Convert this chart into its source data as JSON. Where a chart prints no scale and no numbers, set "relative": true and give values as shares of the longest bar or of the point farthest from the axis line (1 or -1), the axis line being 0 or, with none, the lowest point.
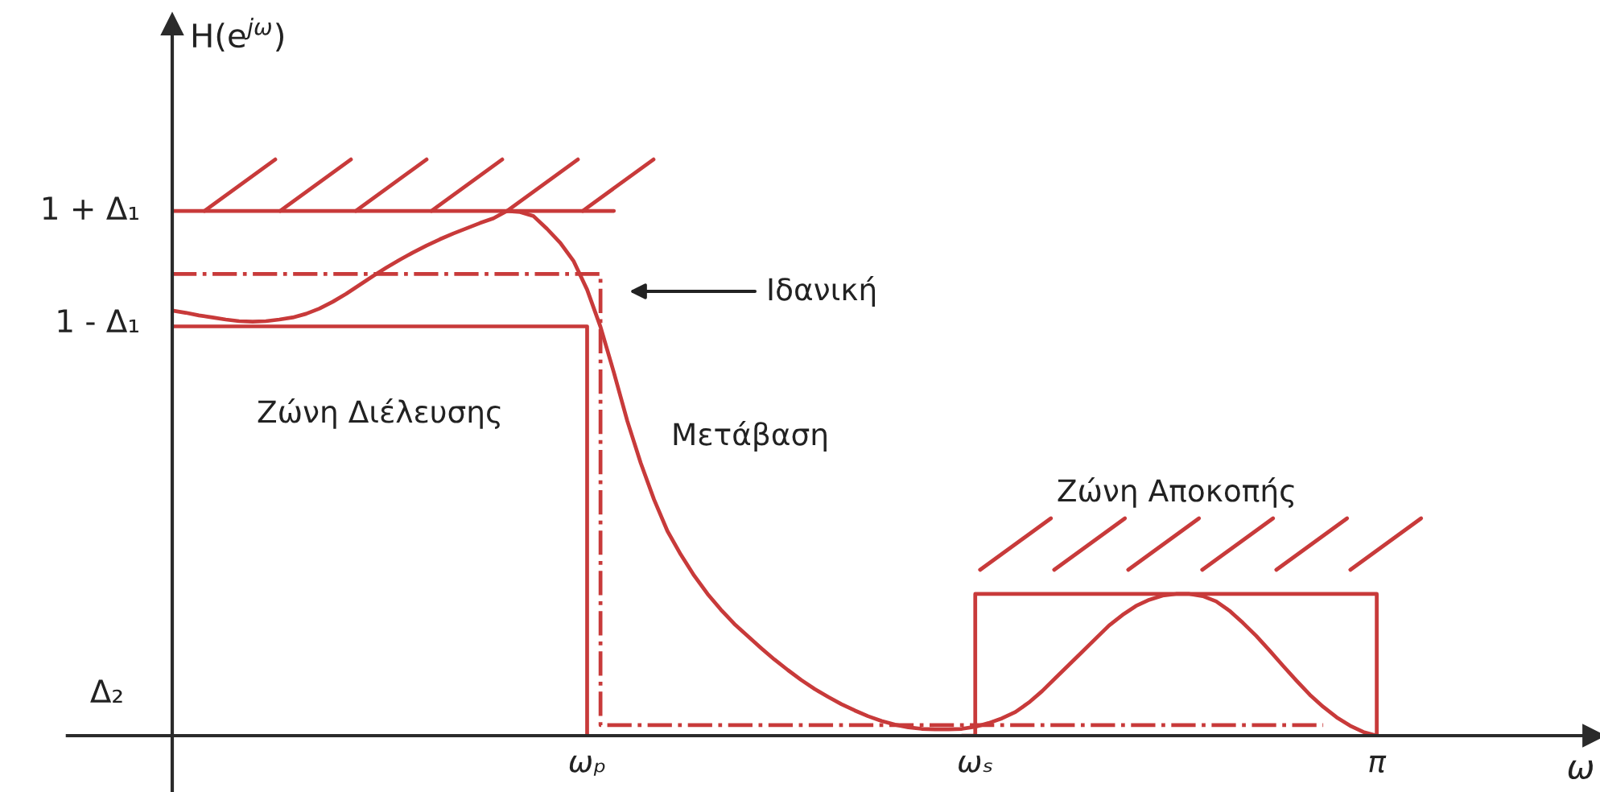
{
  "chart_data": {
    "type": "line",
    "relative": true,
    "marker": "none",
    "categories": [
      null,
      null,
      null,
      null,
      null,
      null,
      null,
      null,
      null,
      null,
      null,
      null,
      null,
      null,
      null,
      null,
      null,
      null,
      null,
      null,
      null,
      null,
      null,
      null,
      null,
      null,
      null,
      null,
      null,
      null,
      null,
      "ωₚ",
      null,
      null,
      null,
      null,
      null,
      null,
      null,
      null,
      null,
      null,
      null,
      null,
      null,
      null,
      null,
      null,
      null,
      null,
      null,
      null,
      null,
      null,
      null,
      null,
      null,
      null,
      null,
      null,
      "ωₛ",
      null,
      null,
      null,
      null,
      null,
      null,
      null,
      null,
      null,
      null,
      null,
      null,
      null,
      null,
      null,
      null,
      null,
      null,
      null,
      null,
      null,
      null,
      null,
      null,
      null,
      null,
      null,
      null,
      null,
      "π"
    ],
    "series": [
      {
        "color": "#c83a3a",
        "values": [
          1.0,
          1.0,
          1.0,
          1.0,
          1.0,
          1.0,
          1.0,
          1.0,
          1.0,
          1.0,
          1.0,
          1.0,
          1.0,
          1.0,
          1.0,
          1.0,
          1.0,
          1.0,
          1.0,
          1.0,
          1.0,
          1.0,
          1.0,
          1.0,
          1.0,
          1.0,
          1.0,
          1.0,
          1.0,
          1.0,
          1.0,
          1.0,
          1.0,
          1.0,
          null,
          null,
          null,
          null,
          null,
          null,
          null,
          null,
          null,
          null,
          null,
          null,
          null,
          null,
          null,
          null,
          null,
          null,
          null,
          null,
          null,
          null,
          null,
          null,
          null,
          null,
          null,
          null,
          null,
          null,
          null,
          null,
          null,
          null,
          null,
          null,
          null,
          null,
          null,
          null,
          null,
          null,
          null,
          null,
          null,
          null,
          null,
          null,
          null,
          null,
          null,
          null,
          null,
          null,
          null,
          null,
          null
        ]
      },
      {
        "type": "step",
        "color": "#c83a3a",
        "values": [
          0.78,
          0.78,
          0.78,
          0.78,
          0.78,
          0.78,
          0.78,
          0.78,
          0.78,
          0.78,
          0.78,
          0.78,
          0.78,
          0.78,
          0.78,
          0.78,
          0.78,
          0.78,
          0.78,
          0.78,
          0.78,
          0.78,
          0.78,
          0.78,
          0.78,
          0.78,
          0.78,
          0.78,
          0.78,
          0.78,
          0.78,
          0,
          null,
          null,
          null,
          null,
          null,
          null,
          null,
          null,
          null,
          null,
          null,
          null,
          null,
          null,
          null,
          null,
          null,
          null,
          null,
          null,
          null,
          null,
          null,
          null,
          null,
          null,
          null,
          null,
          null,
          null,
          null,
          null,
          null,
          null,
          null,
          null,
          null,
          null,
          null,
          null,
          null,
          null,
          null,
          null,
          null,
          null,
          null,
          null,
          null,
          null,
          null,
          null,
          null,
          null,
          null,
          null,
          null,
          null,
          null
        ]
      },
      {
        "type": "step",
        "color": "#c83a3a",
        "line_style": "dashdot",
        "values": [
          0.88,
          0.88,
          0.88,
          0.88,
          0.88,
          0.88,
          0.88,
          0.88,
          0.88,
          0.88,
          0.88,
          0.88,
          0.88,
          0.88,
          0.88,
          0.88,
          0.88,
          0.88,
          0.88,
          0.88,
          0.88,
          0.88,
          0.88,
          0.88,
          0.88,
          0.88,
          0.88,
          0.88,
          0.88,
          0.88,
          0.88,
          0.88,
          0.02,
          0.02,
          0.02,
          0.02,
          0.02,
          0.02,
          0.02,
          0.02,
          0.02,
          0.02,
          0.02,
          0.02,
          0.02,
          0.02,
          0.02,
          0.02,
          0.02,
          0.02,
          0.02,
          0.02,
          0.02,
          0.02,
          0.02,
          0.02,
          0.02,
          0.02,
          0.02,
          0.02,
          0.02,
          0.02,
          0.02,
          0.02,
          0.02,
          0.02,
          0.02,
          0.02,
          0.02,
          0.02,
          0.02,
          0.02,
          0.02,
          0.02,
          0.02,
          0.02,
          0.02,
          0.02,
          0.02,
          0.02,
          0.02,
          0.02,
          0.02,
          0.02,
          0.02,
          0.02,
          0.02,
          null,
          null,
          null,
          null
        ]
      },
      {
        "type": "step",
        "color": "#c83a3a",
        "values": [
          null,
          null,
          null,
          null,
          null,
          null,
          null,
          null,
          null,
          null,
          null,
          null,
          null,
          null,
          null,
          null,
          null,
          null,
          null,
          null,
          null,
          null,
          null,
          null,
          null,
          null,
          null,
          null,
          null,
          null,
          null,
          null,
          null,
          null,
          null,
          null,
          null,
          null,
          null,
          null,
          null,
          null,
          null,
          null,
          null,
          null,
          null,
          null,
          null,
          null,
          null,
          null,
          null,
          null,
          null,
          null,
          null,
          null,
          null,
          0,
          0.27,
          0.27,
          0.27,
          0.27,
          0.27,
          0.27,
          0.27,
          0.27,
          0.27,
          0.27,
          0.27,
          0.27,
          0.27,
          0.27,
          0.27,
          0.27,
          0.27,
          0.27,
          0.27,
          0.27,
          0.27,
          0.27,
          0.27,
          0.27,
          0.27,
          0.27,
          0.27,
          0.27,
          0.27,
          0.27,
          0
        ]
      },
      {
        "color": "#c83a3a",
        "values": [
          0.81,
          0.806,
          0.801,
          0.797,
          0.793,
          0.79,
          0.789,
          0.79,
          0.793,
          0.797,
          0.804,
          0.814,
          0.827,
          0.842,
          0.859,
          0.876,
          0.892,
          0.907,
          0.921,
          0.934,
          0.946,
          0.957,
          0.967,
          0.977,
          0.986,
          1.0,
          0.998,
          0.99,
          0.966,
          0.939,
          0.904,
          0.85,
          0.779,
          0.692,
          0.6,
          0.52,
          0.45,
          0.39,
          0.345,
          0.305,
          0.27,
          0.24,
          0.213,
          0.19,
          0.167,
          0.145,
          0.125,
          0.106,
          0.089,
          0.074,
          0.06,
          0.048,
          0.037,
          0.028,
          0.021,
          0.016,
          0.013,
          0.012,
          0.012,
          0.013,
          0.017,
          0.024,
          0.033,
          0.045,
          0.063,
          0.085,
          0.11,
          0.135,
          0.16,
          0.185,
          0.21,
          0.23,
          0.247,
          0.259,
          0.267,
          0.27,
          0.27,
          0.266,
          0.256,
          0.238,
          0.215,
          0.19,
          0.162,
          0.133,
          0.105,
          0.078,
          0.055,
          0.035,
          0.019,
          0.007,
          0
        ]
      }
    ],
    "annotations": [
      "H(e$^{jω}$)",
      "1 + Δ₁",
      "1 - Δ₁",
      "Δ₂",
      "Ιδανική",
      "Ζώνη Διέλευσης",
      "Μετάβαση",
      "Ζώνη Αποκοπής",
      "ω"
    ]
  }
}
